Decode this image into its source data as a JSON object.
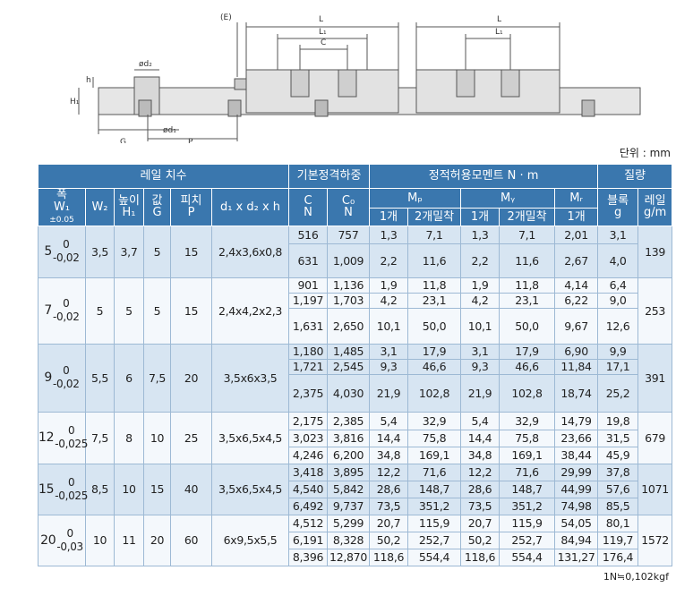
{
  "drawing": {
    "labels": {
      "e": "(E)",
      "l": "L",
      "l1": "L₁",
      "c": "C",
      "l_b": "L",
      "l1_b": "L₁",
      "d2": "ød₂",
      "h": "h",
      "h1": "H₁",
      "d1": "ød₁",
      "g": "G",
      "p": "P"
    }
  },
  "unit": "단위 : mm",
  "table": {
    "header": {
      "rail": "레일 치수",
      "load": "기본정격하중",
      "moment": "정적허용모멘트 N · m",
      "mass": "질량",
      "w1_name": "폭",
      "w1": "W₁",
      "w1_tol": "±0.05",
      "w2": "W₂",
      "h1_name": "높이",
      "h1": "H₁",
      "g_name": "값",
      "g": "G",
      "p_name": "피치",
      "p": "P",
      "d": "d₁ x d₂ x h",
      "c": "C",
      "c_unit": "N",
      "co": "C₀",
      "co_unit": "N",
      "mp": "Mₚ",
      "my": "Mᵧ",
      "mr": "Mᵣ",
      "block": "블록",
      "block_unit": "g",
      "railm": "레일",
      "railm_unit": "g/m",
      "mp_1": "1개",
      "mp_2": "2개밀착",
      "my_1": "1개",
      "my_2": "2개밀착",
      "mr_1": "1개"
    },
    "groups": [
      {
        "w1": "5",
        "upper": "0",
        "lower": "-0,02",
        "w2": "3,5",
        "h1": "3,7",
        "g": "5",
        "p": "15",
        "d": "2,4x3,6x0,8",
        "rail": "139",
        "blocks": [
          [
            "516",
            "757",
            "1,3",
            "7,1",
            "1,3",
            "7,1",
            "2,01",
            "3,1"
          ],
          [
            "631",
            "1,009",
            "2,2",
            "11,6",
            "2,2",
            "11,6",
            "2,67",
            "4,0"
          ]
        ]
      },
      {
        "w1": "7",
        "upper": "0",
        "lower": "-0,02",
        "w2": "5",
        "h1": "5",
        "g": "5",
        "p": "15",
        "d": "2,4x4,2x2,3",
        "rail": "253",
        "blocks": [
          [
            "901",
            "1,136",
            "1,9",
            "11,8",
            "1,9",
            "11,8",
            "4,14",
            "6,4"
          ],
          [
            "1,197",
            "1,703",
            "4,2",
            "23,1",
            "4,2",
            "23,1",
            "6,22",
            "9,0"
          ],
          [
            "1,631",
            "2,650",
            "10,1",
            "50,0",
            "10,1",
            "50,0",
            "9,67",
            "12,6"
          ]
        ]
      },
      {
        "w1": "9",
        "upper": "0",
        "lower": "-0,02",
        "w2": "5,5",
        "h1": "6",
        "g": "7,5",
        "p": "20",
        "d": "3,5x6x3,5",
        "rail": "391",
        "blocks": [
          [
            "1,180",
            "1,485",
            "3,1",
            "17,9",
            "3,1",
            "17,9",
            "6,90",
            "9,9"
          ],
          [
            "1,721",
            "2,545",
            "9,3",
            "46,6",
            "9,3",
            "46,6",
            "11,84",
            "17,1"
          ],
          [
            "2,375",
            "4,030",
            "21,9",
            "102,8",
            "21,9",
            "102,8",
            "18,74",
            "25,2"
          ]
        ]
      },
      {
        "w1": "12",
        "upper": "0",
        "lower": "-0,025",
        "w2": "7,5",
        "h1": "8",
        "g": "10",
        "p": "25",
        "d": "3,5x6,5x4,5",
        "rail": "679",
        "blocks": [
          [
            "2,175",
            "2,385",
            "5,4",
            "32,9",
            "5,4",
            "32,9",
            "14,79",
            "19,8"
          ],
          [
            "3,023",
            "3,816",
            "14,4",
            "75,8",
            "14,4",
            "75,8",
            "23,66",
            "31,5"
          ],
          [
            "4,246",
            "6,200",
            "34,8",
            "169,1",
            "34,8",
            "169,1",
            "38,44",
            "45,9"
          ]
        ]
      },
      {
        "w1": "15",
        "upper": "0",
        "lower": "-0,025",
        "w2": "8,5",
        "h1": "10",
        "g": "15",
        "p": "40",
        "d": "3,5x6,5x4,5",
        "rail": "1071",
        "blocks": [
          [
            "3,418",
            "3,895",
            "12,2",
            "71,6",
            "12,2",
            "71,6",
            "29,99",
            "37,8"
          ],
          [
            "4,540",
            "5,842",
            "28,6",
            "148,7",
            "28,6",
            "148,7",
            "44,99",
            "57,6"
          ],
          [
            "6,492",
            "9,737",
            "73,5",
            "351,2",
            "73,5",
            "351,2",
            "74,98",
            "85,5"
          ]
        ]
      },
      {
        "w1": "20",
        "upper": "0",
        "lower": "-0,03",
        "w2": "10",
        "h1": "11",
        "g": "20",
        "p": "60",
        "d": "6x9,5x5,5",
        "rail": "1572",
        "blocks": [
          [
            "4,512",
            "5,299",
            "20,7",
            "115,9",
            "20,7",
            "115,9",
            "54,05",
            "80,1"
          ],
          [
            "6,191",
            "8,328",
            "50,2",
            "252,7",
            "50,2",
            "252,7",
            "84,94",
            "119,7"
          ],
          [
            "8,396",
            "12,870",
            "118,6",
            "554,4",
            "118,6",
            "554,4",
            "131,27",
            "176,4"
          ]
        ]
      }
    ]
  },
  "footnote": "1N≒0,102kgf"
}
